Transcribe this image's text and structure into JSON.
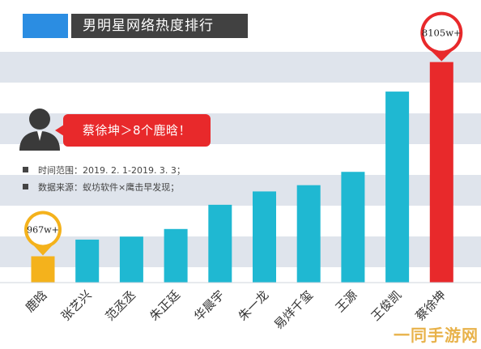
{
  "title": "男明星网络热度排行",
  "callout": "蔡徐坤＞8个鹿晗！",
  "notes": {
    "time_range": "时间范围：2019. 2. 1-2019. 3. 3；",
    "source": "数据来源：蚁坊软件×鹰击早发现；"
  },
  "watermark": "一同手游网",
  "colors": {
    "title_bg": "#414141",
    "title_accent": "#2b8de2",
    "bar_default": "#1fb8d2",
    "bar_first": "#f4b21c",
    "bar_top": "#e8292b",
    "stripe": "#dfe4ec"
  },
  "icons": [
    "person-silhouette-icon",
    "location-pin-icon"
  ],
  "chart_data": {
    "type": "bar",
    "categories": [
      "鹿晗",
      "张艺兴",
      "范丞丞",
      "朱正廷",
      "华晨宇",
      "朱一龙",
      "易烊千玺",
      "王源",
      "王俊凯",
      "蔡徐坤"
    ],
    "values": [
      967,
      1580,
      1690,
      1970,
      2860,
      3350,
      3580,
      4070,
      7020,
      8105
    ],
    "highlight_labels": [
      {
        "category": "鹿晗",
        "label": "967w+"
      },
      {
        "category": "蔡徐坤",
        "label": "8105w+"
      }
    ],
    "ylim": [
      0,
      8600
    ],
    "grid": false,
    "legend": "none"
  }
}
